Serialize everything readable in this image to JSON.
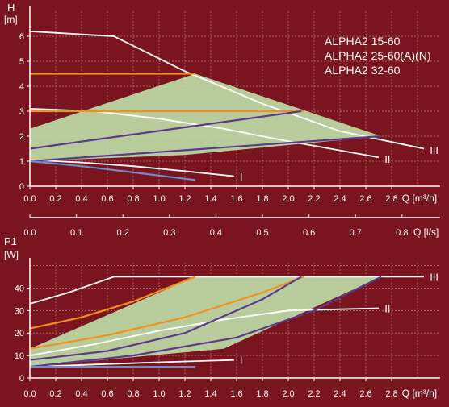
{
  "theme": {
    "background": "#7a1520",
    "grid": "#b8747a",
    "axis": "#ffffff",
    "fill_band": "#bfe0a8",
    "white": "#ffffff",
    "orange": "#f0901e",
    "purple": "#5a3a8a",
    "blue": "#6d8ecb"
  },
  "legend": [
    "ALPHA2 15-60",
    "ALPHA2 25-60(A)(N)",
    "ALPHA2 32-60"
  ],
  "chart_data": [
    {
      "type": "line",
      "title": "",
      "ylabel": "H",
      "yunit": "[m]",
      "xlabel": "Q [m³/h]",
      "xlim": [
        0,
        3.0
      ],
      "ylim": [
        0,
        7
      ],
      "xticks": [
        "0.0",
        "0.2",
        "0.4",
        "0.6",
        "0.8",
        "1.0",
        "1.2",
        "1.4",
        "1.6",
        "1.8",
        "2.0",
        "2.2",
        "2.4",
        "2.6",
        "2.8"
      ],
      "yticks": [
        "0",
        "1",
        "2",
        "3",
        "4",
        "5",
        "6"
      ],
      "secondary_x_axis": {
        "label": "Q [l/s]",
        "xticks": [
          "0.0",
          "0.1",
          "0.2",
          "0.3",
          "0.4",
          "0.5",
          "0.6",
          "0.7",
          "0.8"
        ]
      },
      "band": [
        [
          0,
          2.3
        ],
        [
          1.28,
          4.5
        ],
        [
          2.72,
          2.0
        ],
        [
          1.2,
          1.25
        ],
        [
          0,
          1.0
        ]
      ],
      "series": [
        {
          "name": "III",
          "color": "white",
          "x": [
            0,
            0.65,
            1.2,
            1.8,
            2.4,
            3.05
          ],
          "y": [
            6.2,
            6.0,
            4.6,
            3.3,
            2.2,
            1.5
          ]
        },
        {
          "name": "II",
          "color": "white",
          "x": [
            0,
            0.5,
            1.0,
            1.5,
            2.0,
            2.7
          ],
          "y": [
            3.1,
            3.0,
            2.7,
            2.3,
            1.8,
            1.15
          ]
        },
        {
          "name": "I",
          "color": "white",
          "x": [
            0,
            0.4,
            0.8,
            1.2,
            1.58
          ],
          "y": [
            1.05,
            0.95,
            0.8,
            0.6,
            0.4
          ]
        },
        {
          "name": "",
          "color": "orange",
          "x": [
            0,
            1.28
          ],
          "y": [
            4.5,
            4.5
          ]
        },
        {
          "name": "",
          "color": "orange",
          "x": [
            0,
            2.12
          ],
          "y": [
            3.0,
            3.0
          ]
        },
        {
          "name": "",
          "color": "purple",
          "x": [
            0,
            2.1
          ],
          "y": [
            1.5,
            3.0
          ]
        },
        {
          "name": "",
          "color": "purple",
          "x": [
            0,
            2.72
          ],
          "y": [
            1.0,
            2.0
          ]
        },
        {
          "name": "",
          "color": "blue",
          "x": [
            0,
            0.4,
            0.8,
            1.28
          ],
          "y": [
            1.0,
            0.8,
            0.55,
            0.25
          ]
        }
      ],
      "curve_labels": [
        {
          "text": "III",
          "x": 3.07,
          "y": 1.45
        },
        {
          "text": "II",
          "x": 2.72,
          "y": 1.1
        },
        {
          "text": "I",
          "x": 1.6,
          "y": 0.38
        }
      ]
    },
    {
      "type": "line",
      "title": "",
      "ylabel": "P1",
      "yunit": "[W]",
      "xlabel": "Q [m³/h]",
      "xlim": [
        0,
        3.0
      ],
      "ylim": [
        0,
        50
      ],
      "xticks": [
        "0.0",
        "0.2",
        "0.4",
        "0.6",
        "0.8",
        "1.0",
        "1.2",
        "1.4",
        "1.6",
        "1.8",
        "2.0",
        "2.2",
        "2.4",
        "2.6",
        "2.8"
      ],
      "yticks": [
        "0",
        "10",
        "20",
        "30",
        "40"
      ],
      "band": [
        [
          0,
          13
        ],
        [
          1.28,
          45
        ],
        [
          2.72,
          45
        ],
        [
          1.5,
          13
        ],
        [
          0,
          5
        ]
      ],
      "series": [
        {
          "name": "III",
          "color": "white",
          "x": [
            0,
            0.3,
            0.65,
            3.05
          ],
          "y": [
            33,
            38,
            45,
            45
          ]
        },
        {
          "name": "II",
          "color": "white",
          "x": [
            0,
            0.5,
            1.0,
            1.5,
            2.0,
            2.7
          ],
          "y": [
            10,
            15,
            21,
            26,
            30,
            31
          ]
        },
        {
          "name": "I",
          "color": "white",
          "x": [
            0,
            0.5,
            1.0,
            1.58
          ],
          "y": [
            5,
            6,
            7,
            8
          ]
        },
        {
          "name": "",
          "color": "orange",
          "x": [
            0,
            0.4,
            0.8,
            1.28
          ],
          "y": [
            22,
            27,
            34,
            45
          ]
        },
        {
          "name": "",
          "color": "orange",
          "x": [
            0,
            0.6,
            1.2,
            1.8,
            2.12
          ],
          "y": [
            13,
            19,
            27,
            38,
            45
          ]
        },
        {
          "name": "",
          "color": "purple",
          "x": [
            0,
            0.6,
            1.2,
            1.8,
            2.1
          ],
          "y": [
            8,
            12,
            20,
            35,
            45
          ]
        },
        {
          "name": "",
          "color": "purple",
          "x": [
            0,
            0.8,
            1.6,
            2.2,
            2.72
          ],
          "y": [
            5,
            10,
            18,
            30,
            45
          ]
        },
        {
          "name": "",
          "color": "blue",
          "x": [
            0,
            0.6,
            1.28
          ],
          "y": [
            5,
            5,
            5
          ]
        }
      ],
      "curve_labels": [
        {
          "text": "III",
          "x": 3.07,
          "y": 45
        },
        {
          "text": "II",
          "x": 2.72,
          "y": 31
        },
        {
          "text": "I",
          "x": 1.6,
          "y": 8
        }
      ]
    }
  ]
}
